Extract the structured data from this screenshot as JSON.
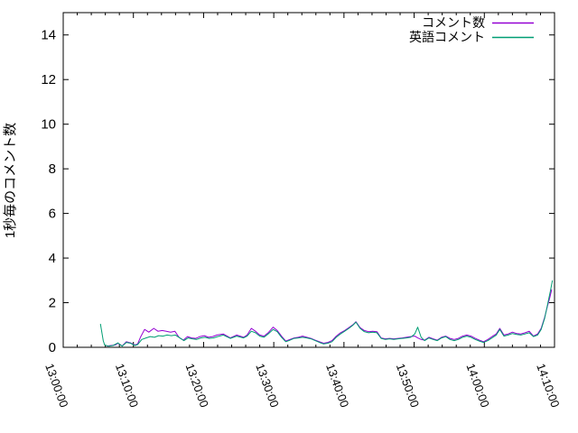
{
  "window": {
    "background": "#ffffff",
    "border_color": "#000000"
  },
  "chart_data": {
    "type": "line",
    "title": "",
    "xlabel": "",
    "ylabel": "1秒毎のコメント数",
    "grid": false,
    "legend_position": "top-right-inside",
    "x_axis": {
      "kind": "time",
      "range_minutes": [
        0,
        70
      ],
      "tick_minutes": [
        0,
        10,
        20,
        30,
        40,
        50,
        60,
        70
      ],
      "tick_labels": [
        "13:00:00",
        "13:10:00",
        "13:20:00",
        "13:30:00",
        "13:40:00",
        "13:50:00",
        "14:00:00",
        "14:10:00"
      ],
      "minor_tick_every_minutes": 2
    },
    "y_axis": {
      "range": [
        0,
        15
      ],
      "ticks": [
        0,
        2,
        4,
        6,
        8,
        10,
        12,
        14
      ],
      "tick_labels": [
        "0",
        "2",
        "4",
        "6",
        "8",
        "10",
        "12",
        "14"
      ]
    },
    "series": [
      {
        "name": "コメント数",
        "color": "#9400d3",
        "points": [
          [
            6.2,
            0.05
          ],
          [
            6.8,
            0.08
          ],
          [
            7.4,
            0.1
          ],
          [
            7.8,
            0.18
          ],
          [
            8.4,
            0.06
          ],
          [
            9.0,
            0.25
          ],
          [
            9.6,
            0.2
          ],
          [
            10.2,
            0.1
          ],
          [
            10.6,
            0.15
          ],
          [
            11.0,
            0.45
          ],
          [
            11.6,
            0.8
          ],
          [
            12.2,
            0.68
          ],
          [
            12.9,
            0.85
          ],
          [
            13.5,
            0.72
          ],
          [
            14.1,
            0.75
          ],
          [
            14.7,
            0.72
          ],
          [
            15.3,
            0.68
          ],
          [
            15.9,
            0.72
          ],
          [
            16.5,
            0.45
          ],
          [
            17.1,
            0.32
          ],
          [
            17.7,
            0.48
          ],
          [
            18.3,
            0.42
          ],
          [
            18.9,
            0.4
          ],
          [
            19.5,
            0.48
          ],
          [
            20.1,
            0.52
          ],
          [
            20.7,
            0.45
          ],
          [
            21.3,
            0.48
          ],
          [
            21.9,
            0.55
          ],
          [
            22.8,
            0.6
          ],
          [
            23.8,
            0.42
          ],
          [
            24.7,
            0.55
          ],
          [
            25.7,
            0.45
          ],
          [
            26.2,
            0.55
          ],
          [
            26.8,
            0.85
          ],
          [
            27.4,
            0.72
          ],
          [
            28.0,
            0.55
          ],
          [
            28.6,
            0.5
          ],
          [
            29.2,
            0.65
          ],
          [
            29.9,
            0.9
          ],
          [
            30.5,
            0.75
          ],
          [
            31.1,
            0.5
          ],
          [
            31.7,
            0.28
          ],
          [
            32.3,
            0.35
          ],
          [
            32.9,
            0.42
          ],
          [
            33.5,
            0.45
          ],
          [
            34.1,
            0.5
          ],
          [
            34.7,
            0.45
          ],
          [
            35.3,
            0.4
          ],
          [
            35.9,
            0.32
          ],
          [
            36.5,
            0.25
          ],
          [
            37.1,
            0.18
          ],
          [
            37.7,
            0.22
          ],
          [
            38.3,
            0.3
          ],
          [
            38.9,
            0.5
          ],
          [
            39.5,
            0.65
          ],
          [
            40.1,
            0.75
          ],
          [
            40.7,
            0.88
          ],
          [
            41.3,
            1.02
          ],
          [
            41.7,
            1.15
          ],
          [
            42.3,
            0.88
          ],
          [
            42.9,
            0.75
          ],
          [
            43.5,
            0.7
          ],
          [
            44.1,
            0.72
          ],
          [
            44.7,
            0.7
          ],
          [
            45.3,
            0.42
          ],
          [
            45.9,
            0.38
          ],
          [
            46.5,
            0.4
          ],
          [
            47.1,
            0.38
          ],
          [
            47.7,
            0.4
          ],
          [
            48.3,
            0.42
          ],
          [
            48.9,
            0.45
          ],
          [
            49.5,
            0.48
          ],
          [
            50.1,
            0.5
          ],
          [
            50.5,
            0.42
          ],
          [
            51.0,
            0.35
          ],
          [
            51.5,
            0.32
          ],
          [
            52.1,
            0.45
          ],
          [
            52.7,
            0.38
          ],
          [
            53.3,
            0.32
          ],
          [
            53.9,
            0.45
          ],
          [
            54.5,
            0.5
          ],
          [
            55.1,
            0.4
          ],
          [
            55.7,
            0.35
          ],
          [
            56.3,
            0.4
          ],
          [
            56.9,
            0.5
          ],
          [
            57.5,
            0.55
          ],
          [
            58.1,
            0.5
          ],
          [
            58.7,
            0.4
          ],
          [
            59.3,
            0.32
          ],
          [
            59.9,
            0.25
          ],
          [
            60.5,
            0.35
          ],
          [
            61.1,
            0.48
          ],
          [
            61.7,
            0.6
          ],
          [
            62.2,
            0.85
          ],
          [
            62.8,
            0.55
          ],
          [
            63.4,
            0.6
          ],
          [
            64.0,
            0.68
          ],
          [
            64.6,
            0.62
          ],
          [
            65.2,
            0.6
          ],
          [
            65.8,
            0.65
          ],
          [
            66.4,
            0.72
          ],
          [
            67.0,
            0.5
          ],
          [
            67.6,
            0.6
          ],
          [
            68.1,
            0.85
          ],
          [
            68.6,
            1.35
          ],
          [
            69.0,
            1.85
          ],
          [
            69.3,
            2.2
          ],
          [
            69.6,
            2.6
          ]
        ]
      },
      {
        "name": "英語コメント",
        "color": "#009e73",
        "points": [
          [
            5.3,
            1.05
          ],
          [
            5.7,
            0.3
          ],
          [
            5.9,
            0.1
          ],
          [
            6.5,
            0.05
          ],
          [
            7.1,
            0.08
          ],
          [
            7.8,
            0.2
          ],
          [
            8.4,
            0.05
          ],
          [
            9.0,
            0.22
          ],
          [
            9.6,
            0.18
          ],
          [
            10.2,
            0.08
          ],
          [
            10.6,
            0.12
          ],
          [
            11.2,
            0.35
          ],
          [
            11.8,
            0.42
          ],
          [
            12.4,
            0.48
          ],
          [
            13.0,
            0.45
          ],
          [
            13.6,
            0.52
          ],
          [
            14.2,
            0.5
          ],
          [
            14.8,
            0.55
          ],
          [
            15.4,
            0.52
          ],
          [
            16.0,
            0.55
          ],
          [
            16.6,
            0.42
          ],
          [
            17.2,
            0.3
          ],
          [
            17.8,
            0.42
          ],
          [
            18.4,
            0.38
          ],
          [
            19.0,
            0.35
          ],
          [
            19.6,
            0.42
          ],
          [
            20.2,
            0.45
          ],
          [
            20.8,
            0.4
          ],
          [
            21.4,
            0.42
          ],
          [
            22.0,
            0.48
          ],
          [
            22.8,
            0.55
          ],
          [
            23.8,
            0.4
          ],
          [
            24.7,
            0.5
          ],
          [
            25.7,
            0.42
          ],
          [
            26.2,
            0.5
          ],
          [
            26.8,
            0.72
          ],
          [
            27.4,
            0.65
          ],
          [
            28.0,
            0.5
          ],
          [
            28.6,
            0.45
          ],
          [
            29.2,
            0.6
          ],
          [
            29.9,
            0.8
          ],
          [
            30.5,
            0.7
          ],
          [
            31.1,
            0.45
          ],
          [
            31.7,
            0.25
          ],
          [
            32.3,
            0.32
          ],
          [
            32.9,
            0.4
          ],
          [
            33.5,
            0.42
          ],
          [
            34.1,
            0.45
          ],
          [
            34.7,
            0.42
          ],
          [
            35.3,
            0.38
          ],
          [
            35.9,
            0.3
          ],
          [
            36.5,
            0.22
          ],
          [
            37.1,
            0.15
          ],
          [
            37.7,
            0.18
          ],
          [
            38.3,
            0.25
          ],
          [
            38.9,
            0.45
          ],
          [
            39.5,
            0.6
          ],
          [
            40.1,
            0.72
          ],
          [
            40.7,
            0.85
          ],
          [
            41.3,
            1.0
          ],
          [
            41.7,
            1.13
          ],
          [
            42.3,
            0.85
          ],
          [
            42.9,
            0.7
          ],
          [
            43.5,
            0.65
          ],
          [
            44.1,
            0.68
          ],
          [
            44.7,
            0.65
          ],
          [
            45.3,
            0.4
          ],
          [
            45.9,
            0.35
          ],
          [
            46.5,
            0.38
          ],
          [
            47.1,
            0.35
          ],
          [
            47.7,
            0.38
          ],
          [
            48.3,
            0.4
          ],
          [
            48.9,
            0.42
          ],
          [
            49.5,
            0.45
          ],
          [
            50.1,
            0.6
          ],
          [
            50.5,
            0.9
          ],
          [
            51.0,
            0.45
          ],
          [
            51.5,
            0.3
          ],
          [
            52.1,
            0.42
          ],
          [
            52.7,
            0.35
          ],
          [
            53.3,
            0.3
          ],
          [
            53.9,
            0.42
          ],
          [
            54.5,
            0.48
          ],
          [
            55.1,
            0.35
          ],
          [
            55.7,
            0.3
          ],
          [
            56.3,
            0.35
          ],
          [
            56.9,
            0.45
          ],
          [
            57.5,
            0.5
          ],
          [
            58.1,
            0.45
          ],
          [
            58.7,
            0.35
          ],
          [
            59.3,
            0.28
          ],
          [
            59.9,
            0.22
          ],
          [
            60.5,
            0.3
          ],
          [
            61.1,
            0.42
          ],
          [
            61.7,
            0.55
          ],
          [
            62.2,
            0.8
          ],
          [
            62.8,
            0.5
          ],
          [
            63.4,
            0.55
          ],
          [
            64.0,
            0.62
          ],
          [
            64.6,
            0.58
          ],
          [
            65.2,
            0.55
          ],
          [
            65.8,
            0.6
          ],
          [
            66.4,
            0.65
          ],
          [
            67.0,
            0.48
          ],
          [
            67.6,
            0.55
          ],
          [
            68.1,
            0.8
          ],
          [
            68.6,
            1.3
          ],
          [
            69.0,
            1.9
          ],
          [
            69.4,
            2.5
          ],
          [
            69.7,
            3.0
          ]
        ]
      }
    ]
  }
}
